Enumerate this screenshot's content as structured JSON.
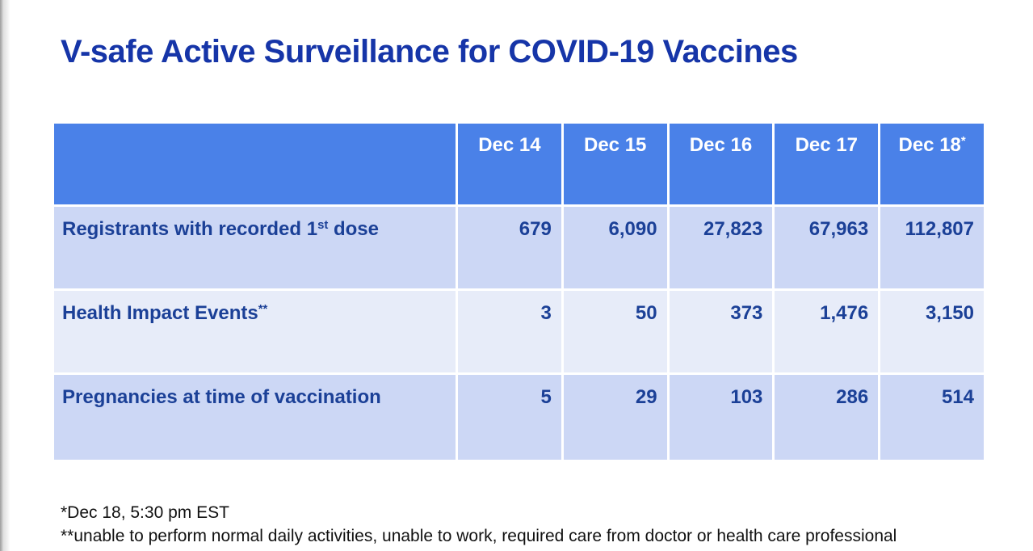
{
  "slide": {
    "title": "V-safe Active Surveillance for COVID-19 Vaccines",
    "table": {
      "columns": [
        "Dec 14",
        "Dec 15",
        "Dec 16",
        "Dec 17",
        "Dec 18"
      ],
      "last_column_sup": "*",
      "rows": [
        {
          "label_pre": "Registrants with recorded 1",
          "label_sup": "st",
          "label_post": " dose",
          "values": [
            "679",
            "6,090",
            "27,823",
            "67,963",
            "112,807"
          ]
        },
        {
          "label_pre": "Health Impact Events",
          "label_sup": "**",
          "label_post": "",
          "values": [
            "3",
            "50",
            "373",
            "1,476",
            "3,150"
          ]
        },
        {
          "label_pre": "Pregnancies at time of vaccination",
          "label_sup": "",
          "label_post": "",
          "values": [
            "5",
            "29",
            "103",
            "286",
            "514"
          ]
        }
      ]
    },
    "footnotes": [
      "*Dec 18, 5:30 pm EST",
      "**unable to perform normal daily activities, unable to work, required care from doctor or health care professional"
    ],
    "colors": {
      "title_text": "#1635a8",
      "header_bg": "#4a81e8",
      "row_odd_bg": "#ccd7f5",
      "row_even_bg": "#e7ecf9",
      "cell_text": "#1b4097",
      "footnote_text": "#111111"
    }
  }
}
